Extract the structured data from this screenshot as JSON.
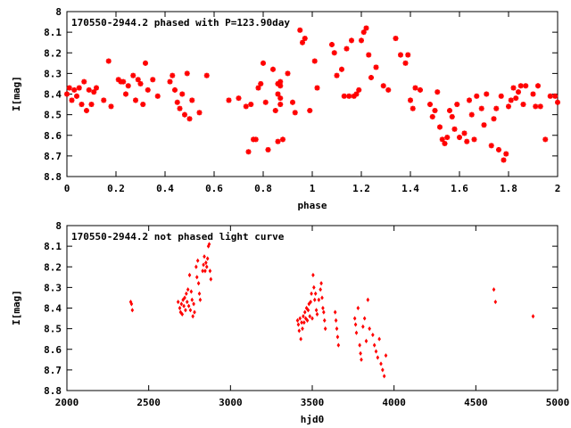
{
  "chart_data": [
    {
      "type": "scatter",
      "title": "170550-2944.2 phased with P=123.90day",
      "xlabel": "phase",
      "ylabel": "I[mag]",
      "xlim": [
        0,
        2
      ],
      "ylim": [
        8.8,
        8.0
      ],
      "y_inverted": true,
      "xticks": [
        "0",
        "0.2",
        "0.4",
        "0.6",
        "0.8",
        "1",
        "1.2",
        "1.4",
        "1.6",
        "1.8",
        "2"
      ],
      "yticks": [
        "8",
        "8.1",
        "8.2",
        "8.3",
        "8.4",
        "8.5",
        "8.6",
        "8.7",
        "8.8"
      ],
      "marker_color": "#ff0000",
      "marker": "star",
      "points": [
        [
          0.0,
          8.4
        ],
        [
          0.01,
          8.37
        ],
        [
          0.02,
          8.43
        ],
        [
          0.03,
          8.38
        ],
        [
          0.04,
          8.41
        ],
        [
          0.05,
          8.37
        ],
        [
          0.06,
          8.45
        ],
        [
          0.07,
          8.34
        ],
        [
          0.08,
          8.48
        ],
        [
          0.09,
          8.38
        ],
        [
          0.1,
          8.45
        ],
        [
          0.11,
          8.39
        ],
        [
          0.12,
          8.37
        ],
        [
          0.15,
          8.43
        ],
        [
          0.17,
          8.24
        ],
        [
          0.18,
          8.46
        ],
        [
          0.21,
          8.33
        ],
        [
          0.22,
          8.34
        ],
        [
          0.23,
          8.34
        ],
        [
          0.24,
          8.4
        ],
        [
          0.25,
          8.36
        ],
        [
          0.27,
          8.31
        ],
        [
          0.28,
          8.43
        ],
        [
          0.29,
          8.33
        ],
        [
          0.3,
          8.35
        ],
        [
          0.31,
          8.45
        ],
        [
          0.32,
          8.25
        ],
        [
          0.33,
          8.38
        ],
        [
          0.35,
          8.33
        ],
        [
          0.37,
          8.41
        ],
        [
          0.42,
          8.34
        ],
        [
          0.43,
          8.31
        ],
        [
          0.44,
          8.38
        ],
        [
          0.45,
          8.44
        ],
        [
          0.46,
          8.47
        ],
        [
          0.47,
          8.4
        ],
        [
          0.48,
          8.5
        ],
        [
          0.49,
          8.3
        ],
        [
          0.5,
          8.52
        ],
        [
          0.51,
          8.43
        ],
        [
          0.54,
          8.49
        ],
        [
          0.57,
          8.31
        ],
        [
          0.66,
          8.43
        ],
        [
          0.7,
          8.42
        ],
        [
          0.73,
          8.46
        ],
        [
          0.74,
          8.68
        ],
        [
          0.75,
          8.45
        ],
        [
          0.76,
          8.62
        ],
        [
          0.77,
          8.62
        ],
        [
          0.78,
          8.37
        ],
        [
          0.79,
          8.35
        ],
        [
          0.8,
          8.25
        ],
        [
          0.81,
          8.44
        ],
        [
          0.82,
          8.67
        ],
        [
          0.84,
          8.28
        ],
        [
          0.85,
          8.48
        ],
        [
          0.86,
          8.63
        ],
        [
          0.86,
          8.35
        ],
        [
          0.86,
          8.4
        ],
        [
          0.87,
          8.36
        ],
        [
          0.87,
          8.42
        ],
        [
          0.87,
          8.34
        ],
        [
          0.87,
          8.45
        ],
        [
          0.88,
          8.62
        ],
        [
          0.9,
          8.3
        ],
        [
          0.92,
          8.44
        ],
        [
          0.93,
          8.49
        ],
        [
          0.95,
          8.09
        ],
        [
          0.96,
          8.15
        ],
        [
          0.97,
          8.13
        ],
        [
          0.99,
          8.48
        ],
        [
          1.01,
          8.24
        ],
        [
          1.02,
          8.37
        ],
        [
          1.08,
          8.16
        ],
        [
          1.09,
          8.2
        ],
        [
          1.1,
          8.31
        ],
        [
          1.12,
          8.28
        ],
        [
          1.13,
          8.41
        ],
        [
          1.14,
          8.18
        ],
        [
          1.15,
          8.41
        ],
        [
          1.16,
          8.14
        ],
        [
          1.17,
          8.41
        ],
        [
          1.18,
          8.4
        ],
        [
          1.19,
          8.38
        ],
        [
          1.2,
          8.14
        ],
        [
          1.21,
          8.1
        ],
        [
          1.22,
          8.08
        ],
        [
          1.23,
          8.21
        ],
        [
          1.24,
          8.32
        ],
        [
          1.26,
          8.27
        ],
        [
          1.29,
          8.36
        ],
        [
          1.31,
          8.38
        ],
        [
          1.34,
          8.13
        ],
        [
          1.36,
          8.21
        ],
        [
          1.38,
          8.25
        ],
        [
          1.39,
          8.21
        ],
        [
          1.4,
          8.43
        ],
        [
          1.41,
          8.47
        ],
        [
          1.42,
          8.37
        ],
        [
          1.44,
          8.38
        ],
        [
          1.48,
          8.45
        ],
        [
          1.49,
          8.51
        ],
        [
          1.5,
          8.48
        ],
        [
          1.51,
          8.39
        ],
        [
          1.52,
          8.56
        ],
        [
          1.53,
          8.62
        ],
        [
          1.54,
          8.64
        ],
        [
          1.55,
          8.61
        ],
        [
          1.56,
          8.48
        ],
        [
          1.57,
          8.51
        ],
        [
          1.58,
          8.57
        ],
        [
          1.59,
          8.45
        ],
        [
          1.6,
          8.61
        ],
        [
          1.62,
          8.59
        ],
        [
          1.63,
          8.63
        ],
        [
          1.64,
          8.43
        ],
        [
          1.65,
          8.5
        ],
        [
          1.66,
          8.62
        ],
        [
          1.67,
          8.41
        ],
        [
          1.69,
          8.47
        ],
        [
          1.7,
          8.55
        ],
        [
          1.71,
          8.4
        ],
        [
          1.73,
          8.65
        ],
        [
          1.74,
          8.52
        ],
        [
          1.75,
          8.47
        ],
        [
          1.76,
          8.67
        ],
        [
          1.77,
          8.41
        ],
        [
          1.78,
          8.72
        ],
        [
          1.79,
          8.69
        ],
        [
          1.8,
          8.46
        ],
        [
          1.81,
          8.43
        ],
        [
          1.82,
          8.37
        ],
        [
          1.83,
          8.42
        ],
        [
          1.84,
          8.39
        ],
        [
          1.85,
          8.36
        ],
        [
          1.86,
          8.45
        ],
        [
          1.87,
          8.36
        ],
        [
          1.9,
          8.4
        ],
        [
          1.91,
          8.46
        ],
        [
          1.92,
          8.36
        ],
        [
          1.93,
          8.46
        ],
        [
          1.95,
          8.62
        ],
        [
          1.97,
          8.41
        ],
        [
          1.99,
          8.41
        ],
        [
          2.0,
          8.44
        ]
      ]
    },
    {
      "type": "scatter",
      "title": "170550-2944.2 not phased light curve",
      "xlabel": "hjd0",
      "ylabel": "I[mag]",
      "xlim": [
        2000,
        5000
      ],
      "ylim": [
        8.8,
        8.0
      ],
      "y_inverted": true,
      "xticks": [
        "2000",
        "2500",
        "3000",
        "3500",
        "4000",
        "4500",
        "5000"
      ],
      "yticks": [
        "8",
        "8.1",
        "8.2",
        "8.3",
        "8.4",
        "8.5",
        "8.6",
        "8.7",
        "8.8"
      ],
      "marker_color": "#ff0000",
      "marker": "diamond",
      "points": [
        [
          2390,
          8.37
        ],
        [
          2395,
          8.38
        ],
        [
          2400,
          8.41
        ],
        [
          2680,
          8.37
        ],
        [
          2690,
          8.4
        ],
        [
          2695,
          8.42
        ],
        [
          2700,
          8.38
        ],
        [
          2705,
          8.43
        ],
        [
          2710,
          8.36
        ],
        [
          2715,
          8.39
        ],
        [
          2720,
          8.35
        ],
        [
          2725,
          8.41
        ],
        [
          2730,
          8.33
        ],
        [
          2735,
          8.37
        ],
        [
          2740,
          8.31
        ],
        [
          2745,
          8.39
        ],
        [
          2750,
          8.24
        ],
        [
          2755,
          8.41
        ],
        [
          2760,
          8.32
        ],
        [
          2765,
          8.36
        ],
        [
          2770,
          8.44
        ],
        [
          2775,
          8.38
        ],
        [
          2780,
          8.42
        ],
        [
          2790,
          8.2
        ],
        [
          2795,
          8.25
        ],
        [
          2800,
          8.17
        ],
        [
          2805,
          8.28
        ],
        [
          2810,
          8.33
        ],
        [
          2815,
          8.36
        ],
        [
          2830,
          8.22
        ],
        [
          2835,
          8.19
        ],
        [
          2840,
          8.15
        ],
        [
          2845,
          8.22
        ],
        [
          2850,
          8.18
        ],
        [
          2855,
          8.2
        ],
        [
          2860,
          8.16
        ],
        [
          2865,
          8.1
        ],
        [
          2870,
          8.09
        ],
        [
          2875,
          8.22
        ],
        [
          2880,
          8.26
        ],
        [
          3410,
          8.46
        ],
        [
          3415,
          8.48
        ],
        [
          3420,
          8.51
        ],
        [
          3425,
          8.45
        ],
        [
          3430,
          8.55
        ],
        [
          3435,
          8.47
        ],
        [
          3440,
          8.5
        ],
        [
          3445,
          8.44
        ],
        [
          3450,
          8.47
        ],
        [
          3455,
          8.42
        ],
        [
          3460,
          8.45
        ],
        [
          3465,
          8.4
        ],
        [
          3470,
          8.46
        ],
        [
          3475,
          8.41
        ],
        [
          3480,
          8.38
        ],
        [
          3485,
          8.44
        ],
        [
          3490,
          8.37
        ],
        [
          3495,
          8.33
        ],
        [
          3500,
          8.45
        ],
        [
          3505,
          8.24
        ],
        [
          3510,
          8.3
        ],
        [
          3515,
          8.36
        ],
        [
          3520,
          8.33
        ],
        [
          3525,
          8.41
        ],
        [
          3530,
          8.43
        ],
        [
          3540,
          8.36
        ],
        [
          3550,
          8.31
        ],
        [
          3555,
          8.28
        ],
        [
          3560,
          8.35
        ],
        [
          3565,
          8.4
        ],
        [
          3570,
          8.42
        ],
        [
          3575,
          8.46
        ],
        [
          3580,
          8.5
        ],
        [
          3640,
          8.42
        ],
        [
          3645,
          8.46
        ],
        [
          3650,
          8.5
        ],
        [
          3655,
          8.54
        ],
        [
          3660,
          8.58
        ],
        [
          3760,
          8.45
        ],
        [
          3765,
          8.48
        ],
        [
          3770,
          8.52
        ],
        [
          3780,
          8.4
        ],
        [
          3790,
          8.58
        ],
        [
          3795,
          8.62
        ],
        [
          3800,
          8.65
        ],
        [
          3810,
          8.49
        ],
        [
          3820,
          8.45
        ],
        [
          3830,
          8.56
        ],
        [
          3840,
          8.36
        ],
        [
          3850,
          8.5
        ],
        [
          3870,
          8.53
        ],
        [
          3880,
          8.58
        ],
        [
          3890,
          8.61
        ],
        [
          3900,
          8.64
        ],
        [
          3910,
          8.55
        ],
        [
          3920,
          8.67
        ],
        [
          3930,
          8.7
        ],
        [
          3940,
          8.73
        ],
        [
          3950,
          8.63
        ],
        [
          4610,
          8.31
        ],
        [
          4620,
          8.37
        ],
        [
          4850,
          8.44
        ]
      ]
    }
  ]
}
